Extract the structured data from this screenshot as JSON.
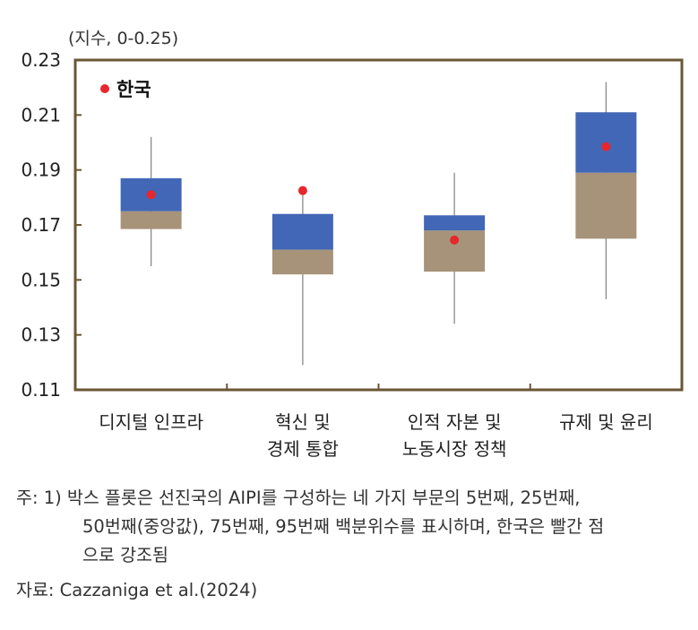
{
  "chart_data": {
    "type": "boxplot",
    "unit_label": "(지수, 0-0.25)",
    "ylim": [
      0.11,
      0.23
    ],
    "yticks": [
      "0.23",
      "0.21",
      "0.19",
      "0.17",
      "0.15",
      "0.13",
      "0.11"
    ],
    "ytick_values": [
      0.23,
      0.21,
      0.19,
      0.17,
      0.15,
      0.13,
      0.11
    ],
    "legend": {
      "label": "한국",
      "position": "top-left"
    },
    "categories": [
      {
        "lines": [
          "디지털 인프라"
        ],
        "p5": 0.155,
        "p25": 0.1685,
        "p50": 0.175,
        "p75": 0.187,
        "p95": 0.202,
        "korea": 0.181
      },
      {
        "lines": [
          "혁신 및",
          "경제 통합"
        ],
        "p5": 0.119,
        "p25": 0.152,
        "p50": 0.161,
        "p75": 0.174,
        "p95": 0.182,
        "korea": 0.1825
      },
      {
        "lines": [
          "인적 자본 및",
          "노동시장 정책"
        ],
        "p5": 0.134,
        "p25": 0.153,
        "p50": 0.168,
        "p75": 0.1735,
        "p95": 0.189,
        "korea": 0.1645
      },
      {
        "lines": [
          "규제 및 윤리"
        ],
        "p5": 0.143,
        "p25": 0.165,
        "p50": 0.189,
        "p75": 0.211,
        "p95": 0.222,
        "korea": 0.1985
      }
    ],
    "colors": {
      "upper_box": "#4267b6",
      "lower_box": "#a6937a",
      "korea_dot": "#e8262d",
      "frame": "#6b5634",
      "whisker": "#8a8a8a"
    }
  },
  "notes": {
    "line1": "주: 1) 박스 플롯은 선진국의 AIPI를 구성하는 네 가지 부문의 5번째, 25번째,",
    "line2": "50번째(중앙값), 75번째, 95번째 백분위수를 표시하며, 한국은 빨간 점",
    "line3": "으로 강조됨"
  },
  "source": "자료: Cazzaniga et al.(2024)"
}
